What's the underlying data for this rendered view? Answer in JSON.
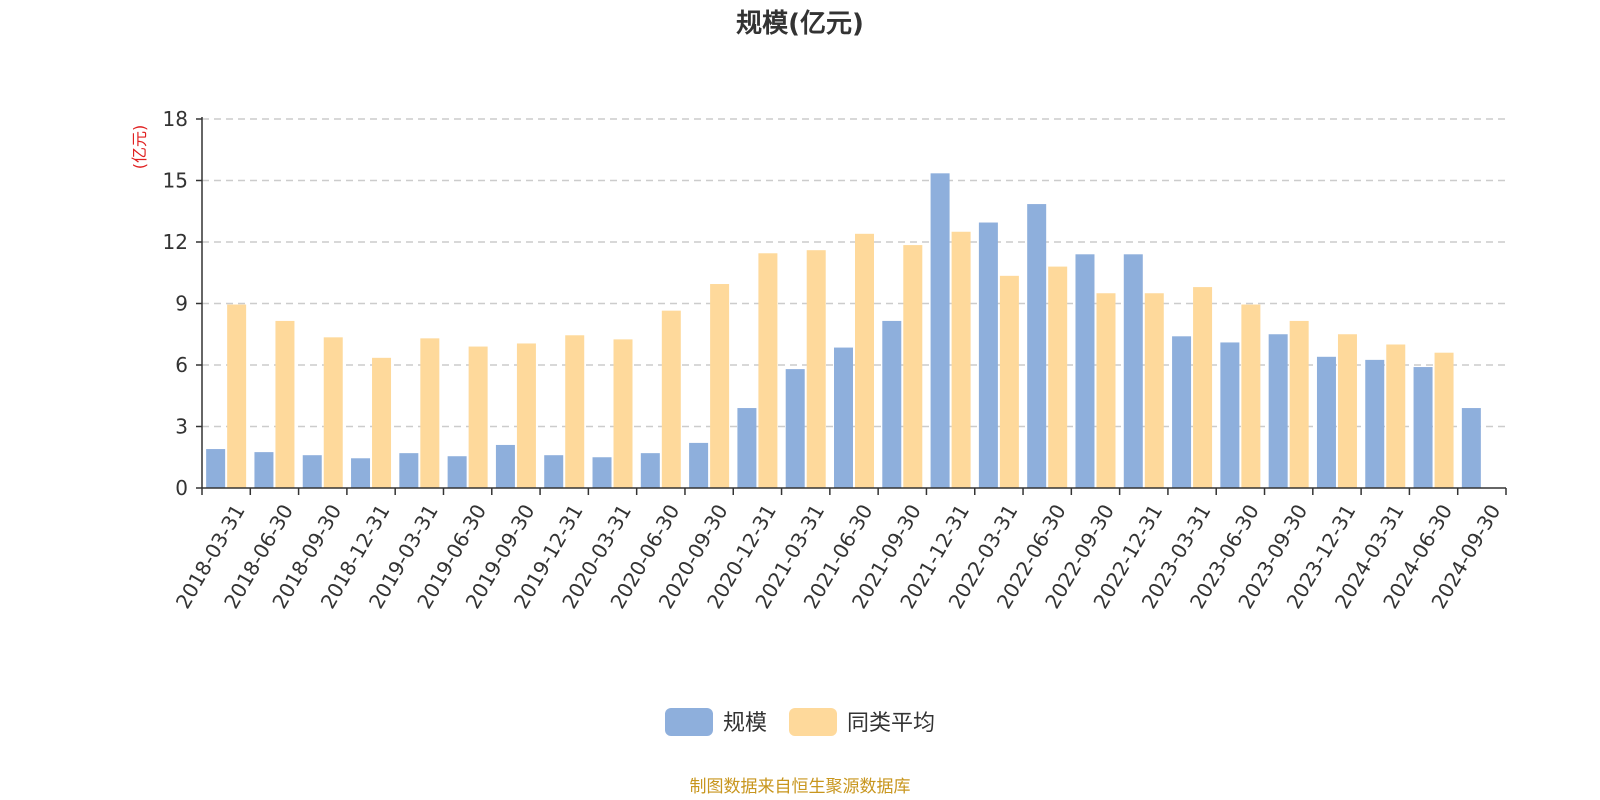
{
  "chart_data": {
    "type": "bar",
    "title": "规模(亿元)",
    "unit_label": "(亿元)",
    "ylim": [
      0,
      18
    ],
    "yticks": [
      0,
      3,
      6,
      9,
      12,
      15,
      18
    ],
    "grid": true,
    "legend_position": "bottom-center",
    "categories": [
      "2018-03-31",
      "2018-06-30",
      "2018-09-30",
      "2018-12-31",
      "2019-03-31",
      "2019-06-30",
      "2019-09-30",
      "2019-12-31",
      "2020-03-31",
      "2020-06-30",
      "2020-09-30",
      "2020-12-31",
      "2021-03-31",
      "2021-06-30",
      "2021-09-30",
      "2021-12-31",
      "2022-03-31",
      "2022-06-30",
      "2022-09-30",
      "2022-12-31",
      "2023-03-31",
      "2023-06-30",
      "2023-09-30",
      "2023-12-31",
      "2024-03-31",
      "2024-06-30",
      "2024-09-30"
    ],
    "series": [
      {
        "name": "规模",
        "color": "#8eafdc",
        "values": [
          1.9,
          1.75,
          1.6,
          1.45,
          1.7,
          1.55,
          2.1,
          1.6,
          1.5,
          1.7,
          2.2,
          3.9,
          5.8,
          6.85,
          8.15,
          15.35,
          12.95,
          13.85,
          11.4,
          11.4,
          7.4,
          7.1,
          7.5,
          6.4,
          6.25,
          5.9,
          3.9
        ]
      },
      {
        "name": "同类平均",
        "color": "#fed99b",
        "values": [
          8.95,
          8.15,
          7.35,
          6.35,
          7.3,
          6.9,
          7.05,
          7.45,
          7.25,
          8.65,
          9.95,
          11.45,
          11.6,
          12.4,
          11.85,
          12.5,
          10.35,
          10.8,
          9.5,
          9.5,
          9.8,
          8.95,
          8.15,
          7.5,
          7.0,
          6.6,
          null
        ]
      }
    ]
  },
  "source_note": "制图数据来自恒生聚源数据库",
  "colors": {
    "unit_label": "#e02020",
    "source_note": "#c8961e",
    "grid": "#cccccc",
    "axis": "#333333"
  }
}
